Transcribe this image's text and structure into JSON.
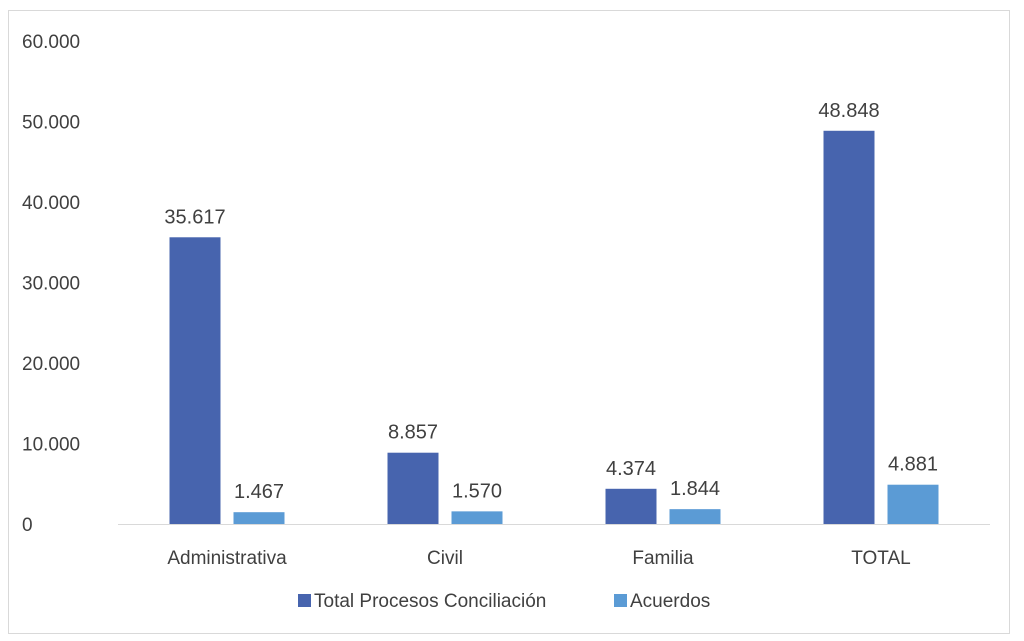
{
  "chart_data": {
    "type": "bar",
    "categories": [
      "Administrativa",
      "Civil",
      "Familia",
      "TOTAL"
    ],
    "series": [
      {
        "name": "Total Procesos Conciliación",
        "values": [
          35617,
          8857,
          4374,
          48848
        ],
        "labels": [
          "35.617",
          "8.857",
          "4.374",
          "48.848"
        ],
        "color": "#4764AE"
      },
      {
        "name": "Acuerdos",
        "values": [
          1467,
          1570,
          1844,
          4881
        ],
        "labels": [
          "1.467",
          "1.570",
          "1.844",
          "4.881"
        ],
        "color": "#5B9BD5"
      }
    ],
    "ylim": [
      0,
      60000
    ],
    "yticks": [
      0,
      10000,
      20000,
      30000,
      40000,
      50000,
      60000
    ],
    "ytick_labels": [
      "0",
      "10.000",
      "20.000",
      "30.000",
      "40.000",
      "50.000",
      "60.000"
    ],
    "gridlines": false,
    "legend": "bottom",
    "axis_color": "#d9d9d9"
  }
}
